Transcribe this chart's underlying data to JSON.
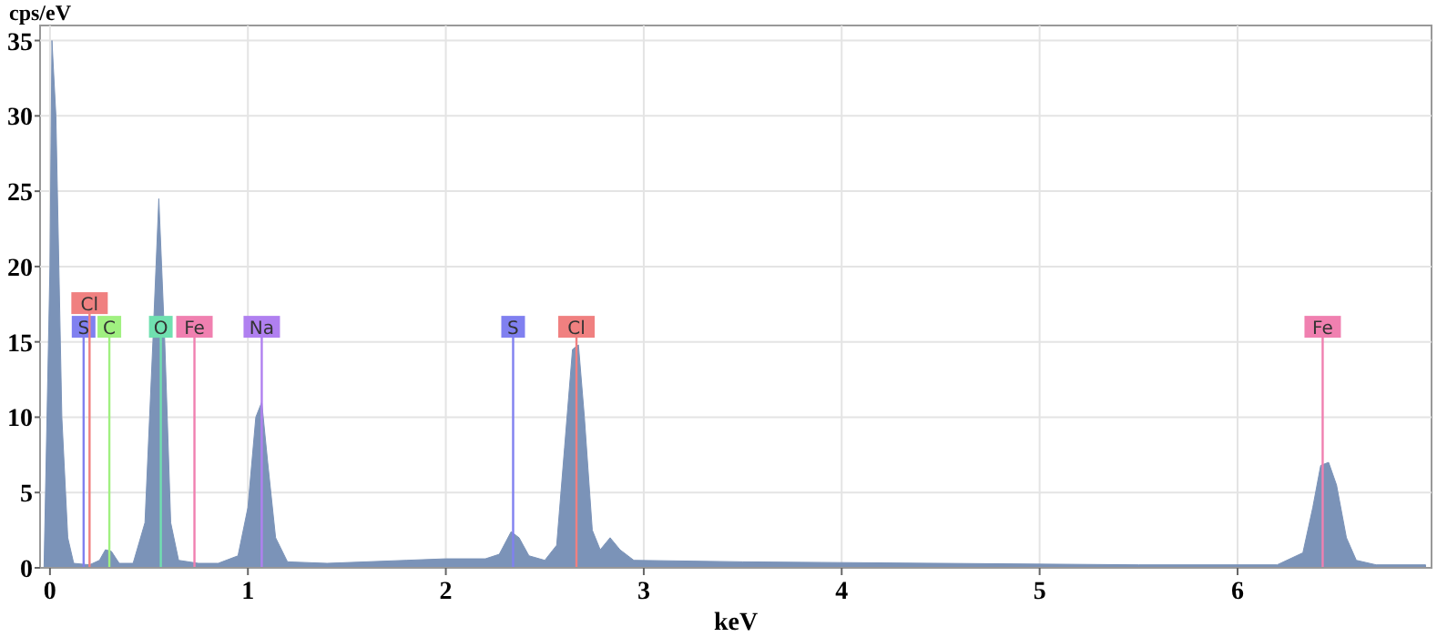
{
  "chart_data": {
    "type": "area",
    "xlabel": "keV",
    "ylabel": "cps/eV",
    "xlim": [
      -0.05,
      6.98
    ],
    "ylim": [
      0,
      36
    ],
    "xticks": [
      0,
      1,
      2,
      3,
      4,
      5,
      6
    ],
    "yticks": [
      0,
      5,
      10,
      15,
      20,
      25,
      30,
      35
    ],
    "grid": true,
    "x": [
      -0.03,
      0,
      0.01,
      0.03,
      0.06,
      0.09,
      0.12,
      0.2,
      0.25,
      0.28,
      0.31,
      0.35,
      0.42,
      0.48,
      0.52,
      0.55,
      0.58,
      0.61,
      0.65,
      0.75,
      0.85,
      0.95,
      1.0,
      1.04,
      1.07,
      1.1,
      1.14,
      1.2,
      1.4,
      1.8,
      2.0,
      2.2,
      2.27,
      2.33,
      2.37,
      2.42,
      2.5,
      2.56,
      2.6,
      2.64,
      2.67,
      2.7,
      2.74,
      2.78,
      2.83,
      2.88,
      2.95,
      3.5,
      4.5,
      5.5,
      6.2,
      6.33,
      6.38,
      6.42,
      6.46,
      6.5,
      6.55,
      6.6,
      6.7,
      6.95
    ],
    "series": [
      {
        "color": "#7b93b8",
        "values": [
          0,
          20,
          35,
          30,
          10,
          2,
          0.3,
          0.2,
          0.5,
          1.2,
          1.1,
          0.3,
          0.3,
          3,
          15,
          24.5,
          15,
          3,
          0.5,
          0.3,
          0.3,
          0.8,
          4,
          10,
          11,
          7,
          2,
          0.4,
          0.3,
          0.5,
          0.6,
          0.6,
          0.9,
          2.4,
          2,
          0.8,
          0.5,
          1.5,
          8,
          14.5,
          14.8,
          10,
          2.5,
          1.2,
          2,
          1.2,
          0.5,
          0.4,
          0.3,
          0.2,
          0.2,
          1,
          4,
          6.8,
          7,
          5.5,
          2,
          0.5,
          0.2,
          0.2
        ]
      }
    ],
    "ref_lines": [
      {
        "axis": "x",
        "value": 0.17,
        "label": "S",
        "color": "#8080f0"
      },
      {
        "axis": "x",
        "value": 0.2,
        "label": "Cl",
        "color": "#f08080"
      },
      {
        "axis": "x",
        "value": 0.3,
        "label": "C",
        "color": "#a0f080"
      },
      {
        "axis": "x",
        "value": 0.56,
        "label": "O",
        "color": "#70e0b0"
      },
      {
        "axis": "x",
        "value": 0.73,
        "label": "Fe",
        "color": "#f080b0"
      },
      {
        "axis": "x",
        "value": 1.07,
        "label": "Na",
        "color": "#b080f0"
      },
      {
        "axis": "x",
        "value": 2.34,
        "label": "S",
        "color": "#8080f0"
      },
      {
        "axis": "x",
        "value": 2.66,
        "label": "Cl",
        "color": "#f08080"
      },
      {
        "axis": "x",
        "value": 6.43,
        "label": "Fe",
        "color": "#f080b0"
      }
    ]
  }
}
